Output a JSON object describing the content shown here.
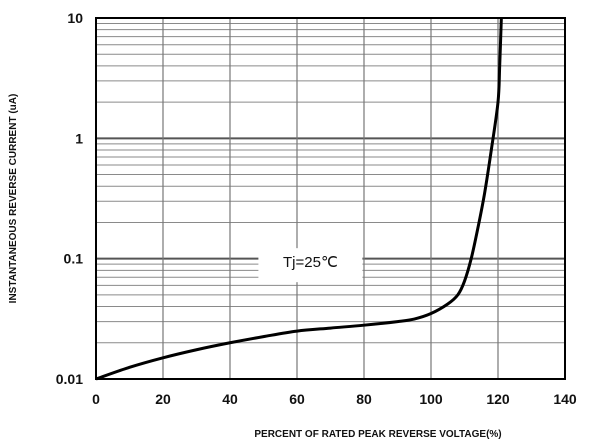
{
  "chart_data": {
    "type": "line",
    "title": "",
    "xlabel": "PERCENT OF RATED PEAK REVERSE VOLTAGE(%)",
    "ylabel": "INSTANTANEOUS REVERSE CURRENT (uA)",
    "xlim": [
      0,
      140
    ],
    "ylim": [
      0.01,
      10
    ],
    "yscale": "log",
    "grid": true,
    "x_ticks": [
      "0",
      "20",
      "40",
      "60",
      "80",
      "100",
      "120",
      "140"
    ],
    "y_ticks": [
      "0.01",
      "0.1",
      "1",
      "10"
    ],
    "annotation": "Tj=25℃",
    "series": [
      {
        "x": [
          0,
          10,
          20,
          30,
          40,
          50,
          60,
          70,
          80,
          90,
          95,
          100,
          105,
          108,
          110,
          112,
          114,
          116,
          118,
          120,
          120.5,
          121
        ],
        "y": [
          0.01,
          0.0125,
          0.015,
          0.0175,
          0.02,
          0.0225,
          0.025,
          0.0265,
          0.028,
          0.03,
          0.0315,
          0.035,
          0.042,
          0.05,
          0.065,
          0.1,
          0.18,
          0.35,
          0.8,
          2.0,
          4.0,
          10.0
        ]
      }
    ]
  }
}
